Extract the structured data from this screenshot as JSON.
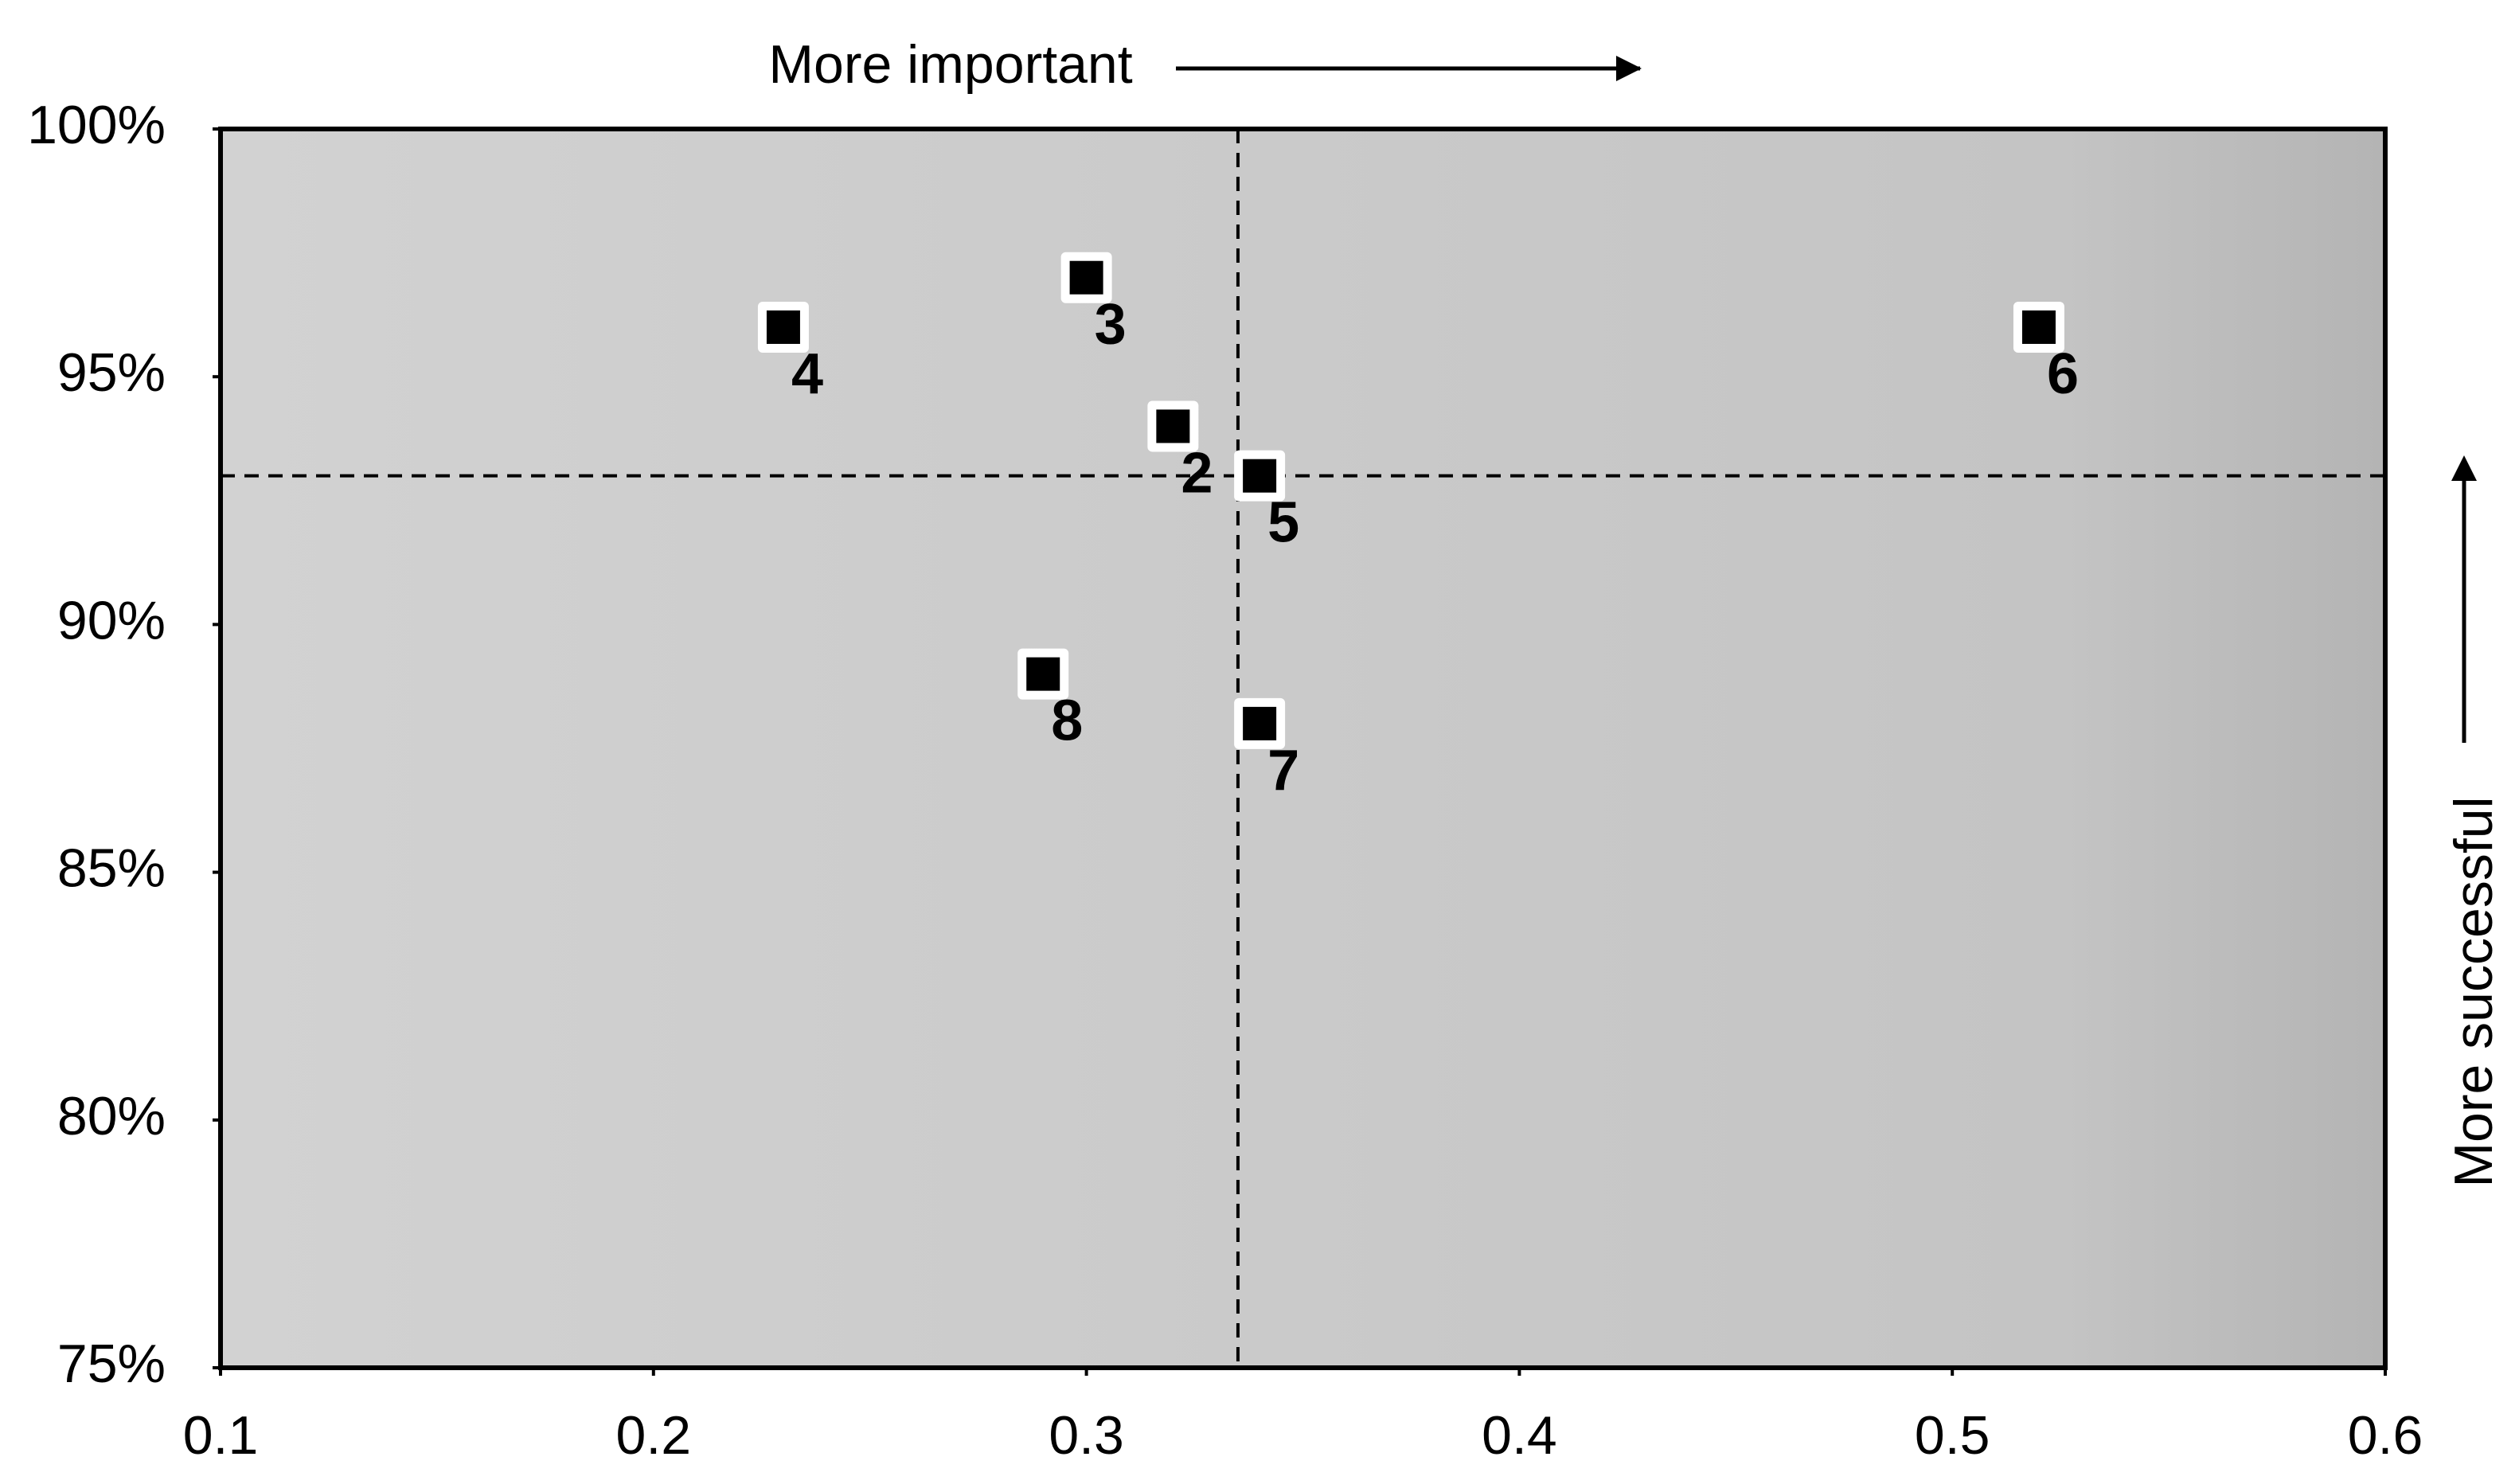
{
  "chart_data": {
    "type": "scatter",
    "title": "More important",
    "y_annotation": "More successful",
    "x": [
      0.32,
      0.3,
      0.23,
      0.34,
      0.52,
      0.34,
      0.29
    ],
    "series": [
      {
        "color": "#000000",
        "values": [
          94,
          97,
          96,
          93,
          96,
          88,
          89
        ]
      }
    ],
    "point_labels": [
      "2",
      "3",
      "4",
      "5",
      "6",
      "7",
      "8"
    ],
    "xlim": [
      0.1,
      0.6
    ],
    "xticks": [
      0.1,
      0.2,
      0.3,
      0.4,
      0.5,
      0.6
    ],
    "ylim": [
      75,
      100
    ],
    "yticks": [
      {
        "value": 75,
        "label": "75%"
      },
      {
        "value": 80,
        "label": "80%"
      },
      {
        "value": 85,
        "label": "85%"
      },
      {
        "value": 90,
        "label": "90%"
      },
      {
        "value": 95,
        "label": "95%"
      },
      {
        "value": 100,
        "label": "100%"
      }
    ],
    "ref_x": 0.335,
    "ref_y": 93
  }
}
